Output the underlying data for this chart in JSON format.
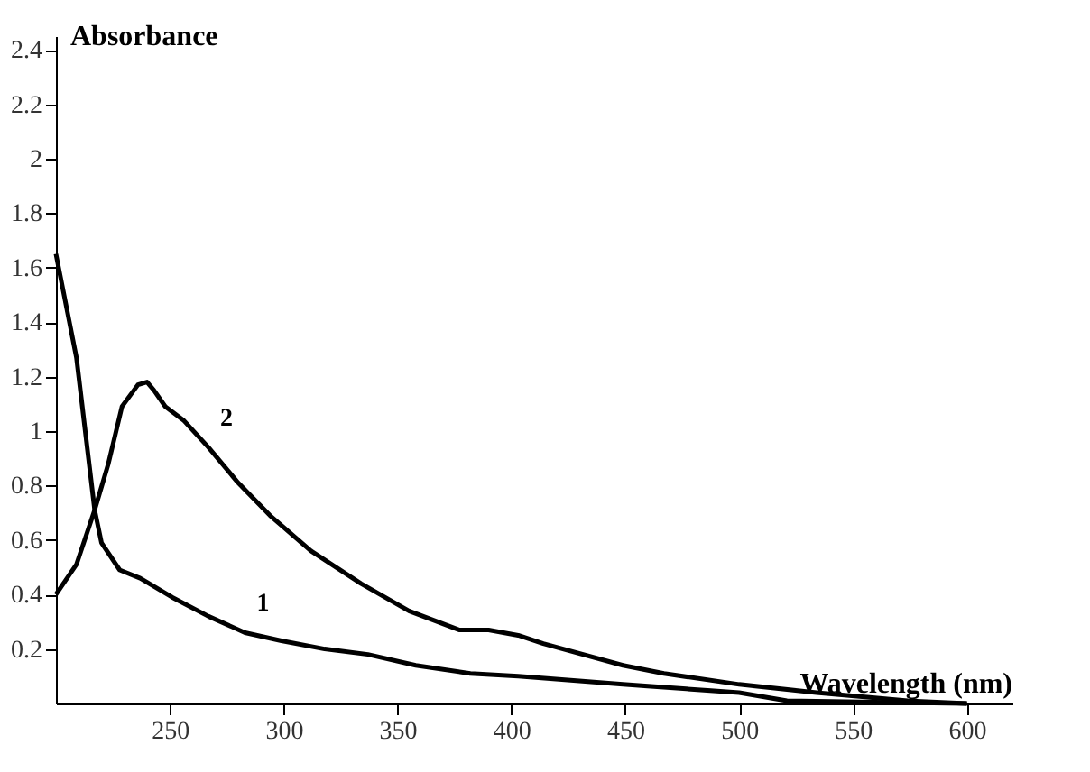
{
  "chart_data": {
    "type": "line",
    "xlabel": "Wavelength (nm)",
    "ylabel": "Absorbance",
    "xlim": [
      200,
      620
    ],
    "ylim": [
      0,
      2.45
    ],
    "xticks": [
      250,
      300,
      350,
      400,
      450,
      500,
      550,
      600
    ],
    "yticks": [
      0.2,
      0.4,
      0.6,
      0.8,
      1,
      1.2,
      1.4,
      1.6,
      1.8,
      2,
      2.2,
      2.4
    ],
    "grid": false,
    "marker": "none",
    "line_style": "solid",
    "series": [
      {
        "name": "1",
        "color": "#000000",
        "x": [
          200,
          209,
          217,
          220,
          228,
          237,
          251,
          267,
          283,
          299,
          318,
          337,
          358,
          382,
          403,
          449,
          500,
          521,
          600
        ],
        "values": [
          1.65,
          1.27,
          0.71,
          0.59,
          0.49,
          0.46,
          0.39,
          0.32,
          0.26,
          0.23,
          0.2,
          0.18,
          0.14,
          0.11,
          0.1,
          0.07,
          0.04,
          0.01,
          0
        ]
      },
      {
        "name": "2",
        "color": "#000000",
        "x": [
          200,
          209,
          217,
          223,
          229,
          236,
          240,
          243,
          248,
          256,
          267,
          280,
          294,
          312,
          334,
          355,
          377,
          390,
          403,
          414,
          449,
          467,
          500,
          534,
          574,
          600
        ],
        "values": [
          0.4,
          0.51,
          0.71,
          0.88,
          1.09,
          1.17,
          1.18,
          1.15,
          1.09,
          1.04,
          0.94,
          0.81,
          0.69,
          0.56,
          0.44,
          0.34,
          0.27,
          0.27,
          0.25,
          0.22,
          0.14,
          0.11,
          0.07,
          0.04,
          0.01,
          0
        ]
      }
    ]
  }
}
